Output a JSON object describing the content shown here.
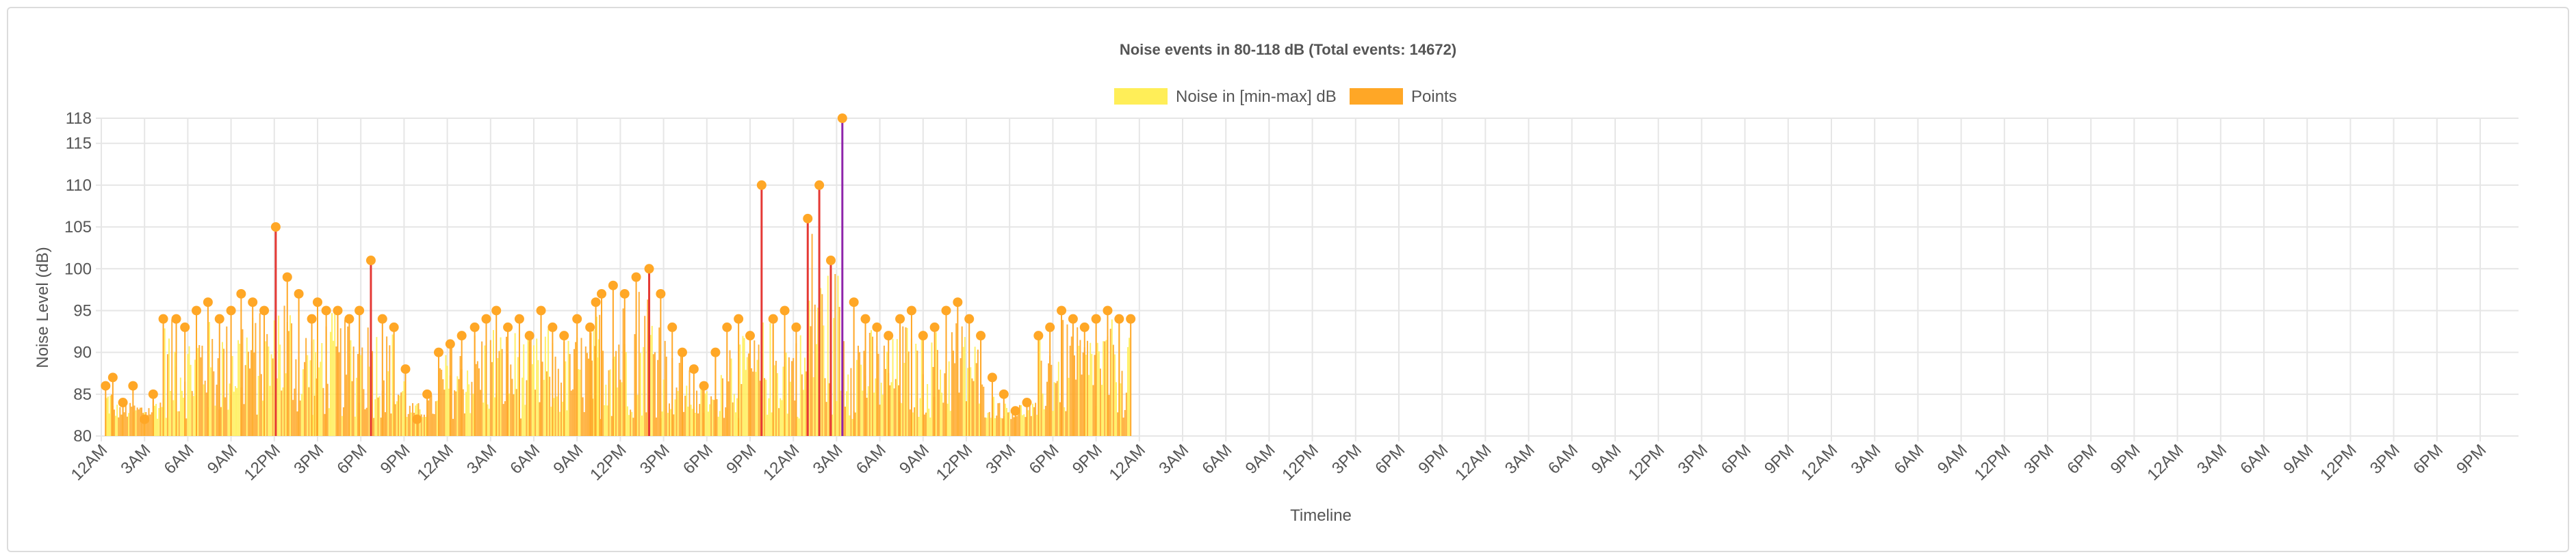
{
  "colors": {
    "noise_fill": "#ffee58",
    "points": "#ffa726",
    "spike_red": "#e53935",
    "spike_purple": "#8e24aa",
    "grid": "#e6e6e6",
    "text": "#555555"
  },
  "chart_data": {
    "type": "bar",
    "title": "Noise events in 80-118 dB (Total events: 14672)",
    "xlabel": "Timeline",
    "ylabel": "Noise Level (dB)",
    "ylim": [
      80,
      118
    ],
    "y_ticks": [
      "118",
      "115",
      "110",
      "105",
      "100",
      "95",
      "90",
      "85",
      "80"
    ],
    "x_ticks": [
      "12AM",
      "3AM",
      "6AM",
      "9AM",
      "12PM",
      "3PM",
      "6PM",
      "9PM",
      "12AM",
      "3AM",
      "6AM",
      "9AM",
      "12PM",
      "3PM",
      "6PM",
      "9PM",
      "12AM",
      "3AM",
      "6AM",
      "9AM",
      "12PM",
      "3PM",
      "6PM",
      "9PM",
      "12AM",
      "3AM",
      "6AM",
      "9AM",
      "12PM",
      "3PM",
      "6PM",
      "9PM",
      "12AM",
      "3AM",
      "6AM",
      "9AM",
      "12PM",
      "3PM",
      "6PM",
      "9PM",
      "12AM",
      "3AM",
      "6AM",
      "9AM",
      "12PM",
      "3PM",
      "6PM",
      "9PM",
      "12AM",
      "3AM",
      "6AM",
      "9AM",
      "12PM",
      "3PM",
      "6PM",
      "9PM"
    ],
    "legend": [
      {
        "name": "Noise in [min-max] dB",
        "color": "#ffee58"
      },
      {
        "name": "Points",
        "color": "#ffa726"
      }
    ],
    "legend_position": "top-center",
    "grid": true,
    "series": [
      {
        "name": "Points",
        "x_hours": [
          0.3,
          0.8,
          1.5,
          2.2,
          3.0,
          3.6,
          4.3,
          5.2,
          5.8,
          6.6,
          7.4,
          8.2,
          9.0,
          9.7,
          10.5,
          11.3,
          12.1,
          12.9,
          13.7,
          14.6,
          15.0,
          15.6,
          16.4,
          17.2,
          17.9,
          18.7,
          19.5,
          20.3,
          21.1,
          21.9,
          22.6,
          23.4,
          24.2,
          25.0,
          25.9,
          26.7,
          27.4,
          28.2,
          29.0,
          29.7,
          30.5,
          31.3,
          32.1,
          33.0,
          33.9,
          34.3,
          34.7,
          35.5,
          36.3,
          37.1,
          38.0,
          38.8,
          39.6,
          40.3,
          41.1,
          41.8,
          42.6,
          43.4,
          44.2,
          45.0,
          45.8,
          46.6,
          47.4,
          48.2,
          49.0,
          49.8,
          50.6,
          51.4,
          52.2,
          53.0,
          53.8,
          54.6,
          55.4,
          56.2,
          57.0,
          57.8,
          58.6,
          59.4,
          60.2,
          61.0,
          61.8,
          62.6,
          63.4,
          64.2,
          65.0,
          65.8,
          66.6,
          67.4,
          68.2,
          69.0,
          69.8,
          70.6,
          71.4
        ],
        "values": [
          86,
          87,
          84,
          86,
          82,
          85,
          94,
          94,
          93,
          95,
          96,
          94,
          95,
          97,
          96,
          95,
          105,
          99,
          97,
          94,
          96,
          95,
          95,
          94,
          95,
          101,
          94,
          93,
          88,
          82,
          85,
          90,
          91,
          92,
          93,
          94,
          95,
          93,
          94,
          92,
          95,
          93,
          92,
          94,
          93,
          96,
          97,
          98,
          97,
          99,
          100,
          97,
          93,
          90,
          88,
          86,
          90,
          93,
          94,
          92,
          110,
          94,
          95,
          93,
          106,
          110,
          101,
          118,
          96,
          94,
          93,
          92,
          94,
          95,
          92,
          93,
          95,
          96,
          94,
          92,
          87,
          85,
          83,
          84,
          92,
          93,
          95,
          94,
          93,
          94,
          95,
          94,
          94
        ]
      }
    ]
  }
}
